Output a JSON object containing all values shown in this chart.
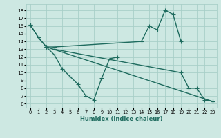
{
  "bg_color": "#cde8e2",
  "grid_color": "#a8cfc8",
  "line_color": "#1e6b5e",
  "marker": "+",
  "markersize": 4,
  "linewidth": 1.0,
  "xlabel": "Humidex (Indice chaleur)",
  "xlim": [
    -0.5,
    23.5
  ],
  "ylim": [
    5.5,
    18.8
  ],
  "yticks": [
    6,
    7,
    8,
    9,
    10,
    11,
    12,
    13,
    14,
    15,
    16,
    17,
    18
  ],
  "xticks": [
    0,
    1,
    2,
    3,
    4,
    5,
    6,
    7,
    8,
    9,
    10,
    11,
    12,
    13,
    14,
    15,
    16,
    17,
    18,
    19,
    20,
    21,
    22,
    23
  ],
  "lines": [
    {
      "x": [
        0,
        1,
        2,
        3,
        14,
        15,
        16,
        17,
        18,
        19
      ],
      "y": [
        16.1,
        14.5,
        13.3,
        13.3,
        14.0,
        16.0,
        15.5,
        18.0,
        17.5,
        14.0
      ]
    },
    {
      "x": [
        0,
        1,
        2,
        3,
        4,
        5,
        6,
        7,
        8,
        9,
        10,
        11
      ],
      "y": [
        16.1,
        14.5,
        13.3,
        12.3,
        10.5,
        9.5,
        8.5,
        7.0,
        6.5,
        9.3,
        11.8,
        12.0
      ]
    },
    {
      "x": [
        2,
        23
      ],
      "y": [
        13.3,
        6.3
      ]
    },
    {
      "x": [
        3,
        19,
        20,
        21,
        22,
        23
      ],
      "y": [
        13.0,
        10.0,
        8.0,
        8.0,
        6.5,
        6.3
      ]
    }
  ]
}
